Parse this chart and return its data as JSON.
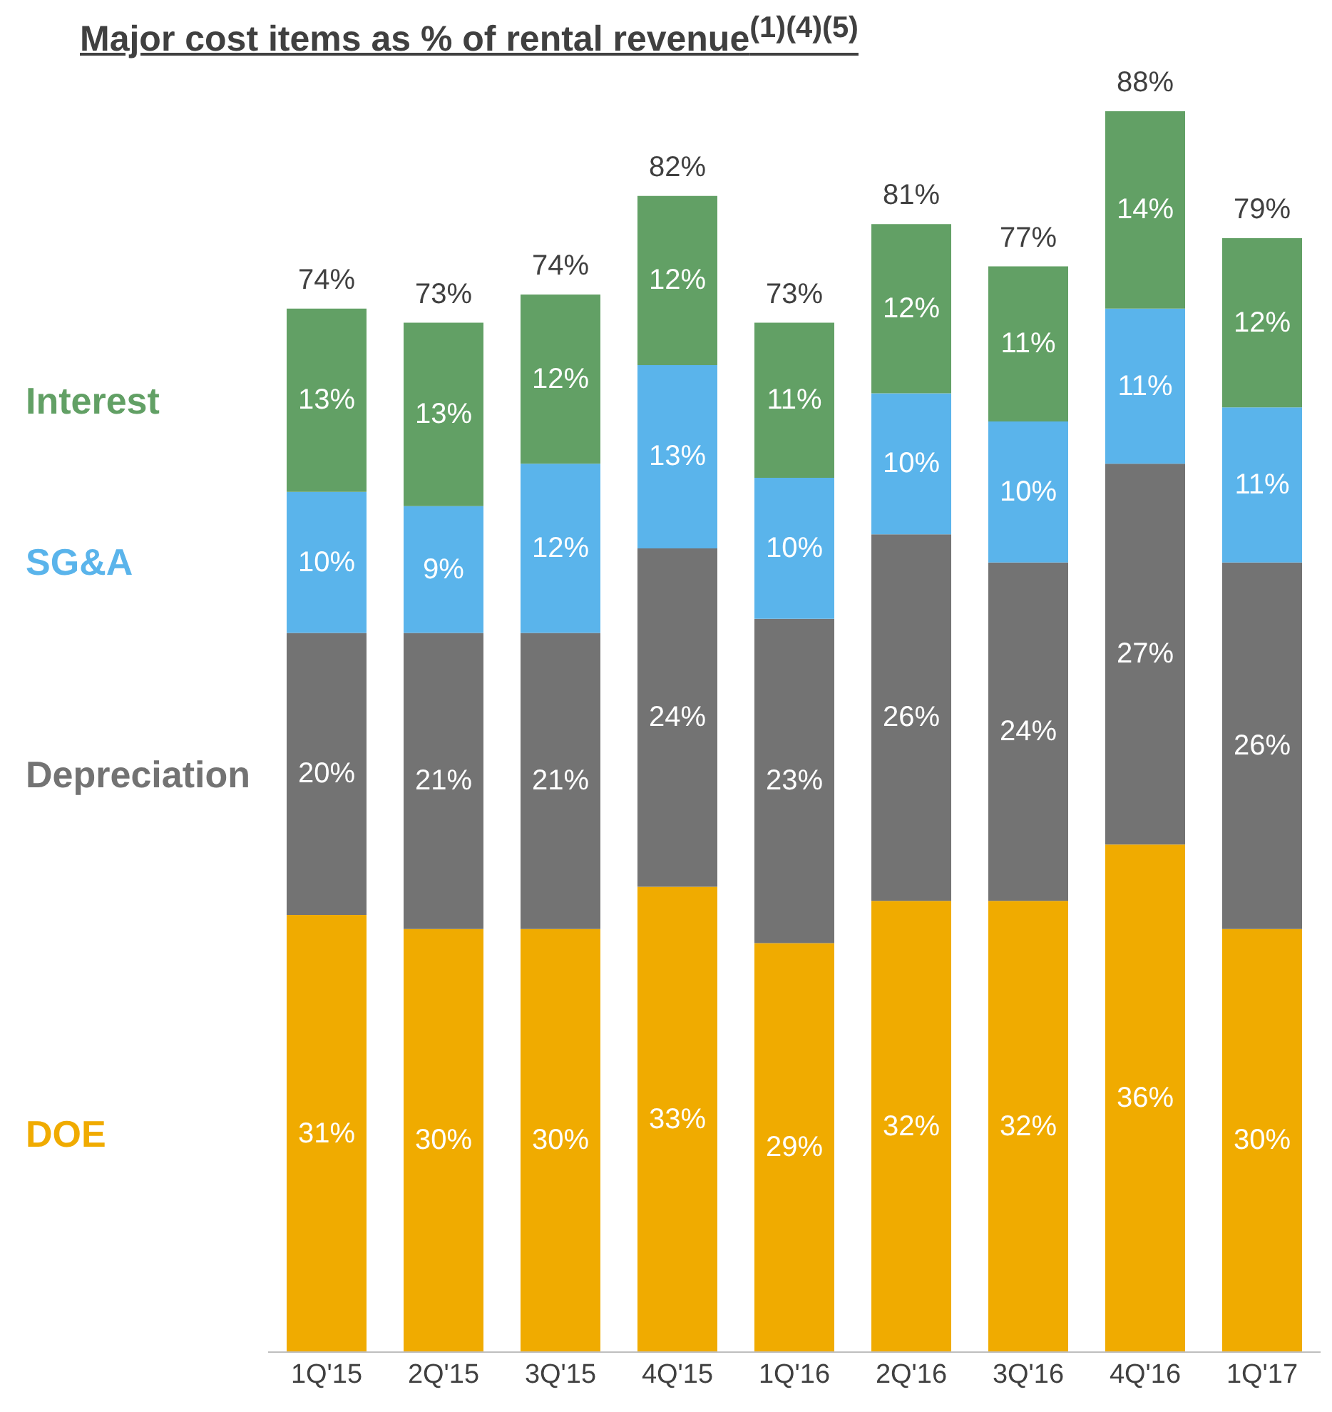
{
  "chart_data": {
    "type": "bar",
    "title": "Major cost items as % of rental revenue$^{(1)(4)(5)}$",
    "categories": [
      "1Q'15",
      "2Q'15",
      "3Q'15",
      "4Q'15",
      "1Q'16",
      "2Q'16",
      "3Q'16",
      "4Q'16",
      "1Q'17"
    ],
    "stacked": true,
    "legend": "left",
    "series": [
      {
        "name": "DOE",
        "color": "#f0ab00",
        "values": [
          31,
          30,
          30,
          33,
          29,
          32,
          32,
          36,
          30
        ],
        "value_labels": [
          "31%",
          "30%",
          "30%",
          "33%",
          "29%",
          "32%",
          "32%",
          "36%",
          "30%"
        ]
      },
      {
        "name": "Depreciation",
        "color": "#737373",
        "values": [
          20,
          21,
          21,
          24,
          23,
          26,
          24,
          27,
          26
        ],
        "value_labels": [
          "20%",
          "21%",
          "21%",
          "24%",
          "23%",
          "26%",
          "24%",
          "27%",
          "26%"
        ]
      },
      {
        "name": "SG&A",
        "color": "#5ab4eb",
        "values": [
          10,
          9,
          12,
          13,
          10,
          10,
          10,
          11,
          11
        ],
        "value_labels": [
          "10%",
          "9%",
          "12%",
          "13%",
          "10%",
          "10%",
          "10%",
          "11%",
          "11%"
        ]
      },
      {
        "name": "Interest",
        "color": "#62a065",
        "values": [
          13,
          13,
          12,
          12,
          11,
          12,
          11,
          14,
          12
        ],
        "value_labels": [
          "13%",
          "13%",
          "12%",
          "12%",
          "11%",
          "12%",
          "11%",
          "14%",
          "12%"
        ]
      }
    ],
    "totals": [
      "74%",
      "73%",
      "74%",
      "82%",
      "73%",
      "81%",
      "77%",
      "88%",
      "79%"
    ]
  }
}
